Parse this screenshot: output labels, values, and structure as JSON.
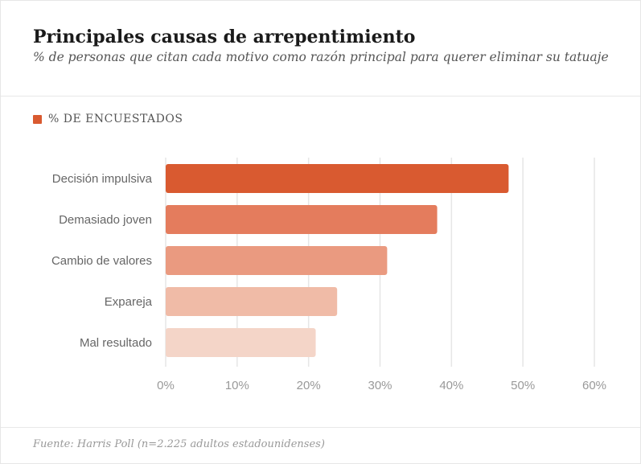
{
  "header": {
    "title": "Principales causas de arrepentimiento",
    "subtitle": "% de personas que citan cada motivo como razón principal para querer eliminar su tatuaje"
  },
  "legend": {
    "label": "% DE ENCUESTADOS",
    "color": "#d95a30"
  },
  "footer": {
    "source": "Fuente: Harris Poll (n=2.225 adultos estadounidenses)"
  },
  "chart_data": {
    "type": "bar",
    "orientation": "horizontal",
    "title": "Principales causas de arrepentimiento",
    "categories": [
      "Decisión impulsiva",
      "Demasiado joven",
      "Cambio de valores",
      "Expareja",
      "Mal resultado"
    ],
    "series": [
      {
        "name": "% DE ENCUESTADOS",
        "values": [
          48,
          38,
          31,
          24,
          21
        ]
      }
    ],
    "bar_colors": [
      "#d95a30",
      "#e47c5d",
      "#ea9a80",
      "#f0bba7",
      "#f4d5c8"
    ],
    "xlim": [
      0,
      60
    ],
    "xticks": [
      0,
      10,
      20,
      30,
      40,
      50,
      60
    ],
    "xtick_labels": [
      "0%",
      "10%",
      "20%",
      "30%",
      "40%",
      "50%",
      "60%"
    ],
    "grid": true,
    "legend_position": "top-left"
  }
}
